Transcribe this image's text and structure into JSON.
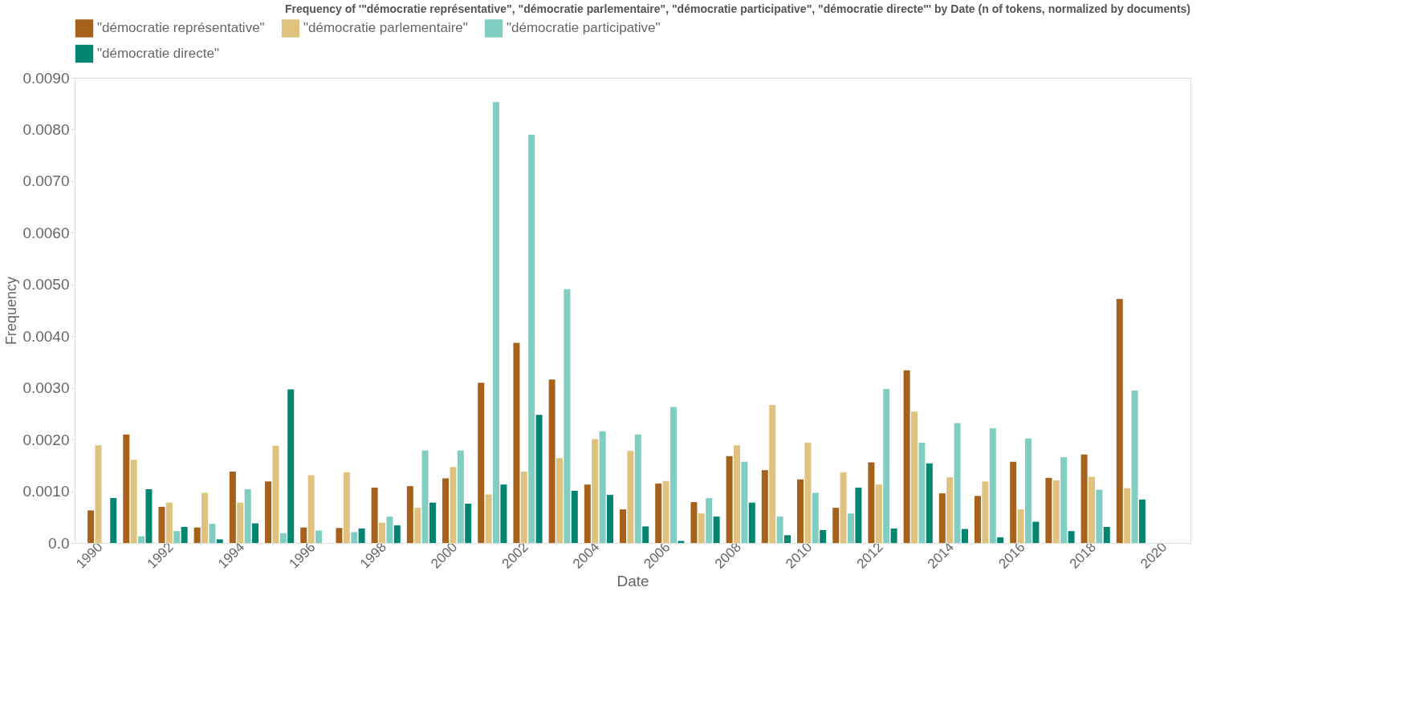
{
  "chart_data": {
    "type": "bar",
    "title": "Frequency of '\"démocratie représentative\", \"démocratie parlementaire\", \"démocratie participative\", \"démocratie directe\"' by Date (n of tokens, normalized by documents)",
    "xlabel": "Date",
    "ylabel": "Frequency",
    "categories": [
      "1990",
      null,
      "1992",
      null,
      "1994",
      null,
      "1996",
      null,
      "1998",
      null,
      "2000",
      null,
      "2002",
      null,
      "2004",
      null,
      "2006",
      null,
      "2008",
      null,
      "2010",
      null,
      "2012",
      null,
      "2014",
      null,
      "2016",
      null,
      "2018",
      null,
      "2020"
    ],
    "series": [
      {
        "name": "\"démocratie représentative\"",
        "color": "#a6611a",
        "values": [
          0.00063,
          0.0021,
          0.0007,
          0.0003,
          0.00138,
          0.00119,
          0.0003,
          0.00029,
          0.00107,
          0.0011,
          0.00125,
          0.0031,
          0.00387,
          0.00316,
          0.00113,
          0.00065,
          0.00115,
          0.00079,
          0.00168,
          0.00141,
          0.00123,
          0.00068,
          0.00156,
          0.00334,
          0.00096,
          0.00091,
          0.00157,
          0.00126,
          0.00171,
          0.00472,
          null
        ]
      },
      {
        "name": "\"démocratie parlementaire\"",
        "color": "#dfc27d",
        "values": [
          0.00189,
          0.00161,
          0.00078,
          0.00097,
          0.00078,
          0.00188,
          0.00131,
          0.00137,
          0.00039,
          0.00068,
          0.00147,
          0.00094,
          0.00138,
          0.00164,
          0.00201,
          0.00178,
          0.0012,
          0.00057,
          0.00189,
          0.00267,
          0.00194,
          0.00137,
          0.00113,
          0.00254,
          0.00127,
          0.00119,
          0.00065,
          0.00121,
          0.00128,
          0.00106,
          null
        ]
      },
      {
        "name": "\"démocratie participative\"",
        "color": "#80cdc1",
        "values": [
          null,
          0.00013,
          0.00023,
          0.00037,
          0.00104,
          0.00019,
          0.00024,
          0.00021,
          0.00051,
          0.00179,
          0.00179,
          0.00853,
          0.0079,
          0.00491,
          0.00216,
          0.0021,
          0.00263,
          0.00087,
          0.00157,
          0.00051,
          0.00097,
          0.00057,
          0.00298,
          0.00194,
          0.00232,
          0.00222,
          0.00202,
          0.00166,
          0.00103,
          0.00295,
          null
        ]
      },
      {
        "name": "\"démocratie directe\"",
        "color": "#018571",
        "values": [
          0.00087,
          0.00104,
          0.00031,
          7e-05,
          0.00038,
          0.00297,
          null,
          0.00028,
          0.00034,
          0.00078,
          0.00076,
          0.00113,
          0.00248,
          0.00101,
          0.00093,
          0.00032,
          4e-05,
          0.00051,
          0.00078,
          0.00015,
          0.00025,
          0.00107,
          0.00028,
          0.00154,
          0.00027,
          0.00011,
          0.00041,
          0.00023,
          0.00031,
          0.00084,
          null
        ]
      }
    ],
    "ylim": [
      0,
      0.009
    ],
    "yticks": [
      {
        "value": 0,
        "label": "0.0"
      },
      {
        "value": 0.001,
        "label": "0.0010"
      },
      {
        "value": 0.002,
        "label": "0.0020"
      },
      {
        "value": 0.003,
        "label": "0.0030"
      },
      {
        "value": 0.004,
        "label": "0.0040"
      },
      {
        "value": 0.005,
        "label": "0.0050"
      },
      {
        "value": 0.006,
        "label": "0.0060"
      },
      {
        "value": 0.007,
        "label": "0.0070"
      },
      {
        "value": 0.008,
        "label": "0.0080"
      },
      {
        "value": 0.009,
        "label": "0.0090"
      }
    ],
    "grid": false,
    "legend": "top"
  }
}
